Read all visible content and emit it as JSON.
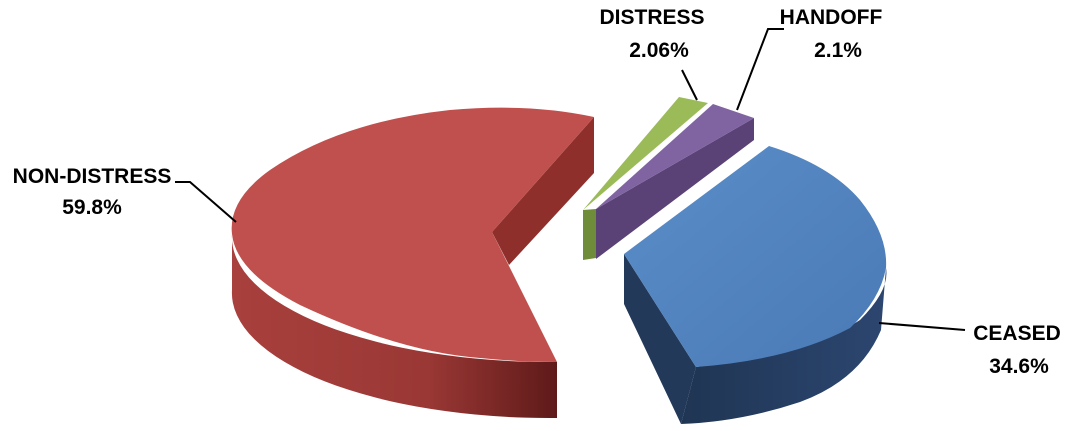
{
  "chart_data": {
    "type": "pie",
    "title": "",
    "exploded_3d": true,
    "slices": [
      {
        "name": "CEASED",
        "label": "CEASED",
        "pct_label": "34.6%",
        "value": 34.6,
        "color": "#4f81bd",
        "side_color": "#243a5e"
      },
      {
        "name": "NON-DISTRESS",
        "label": "NON-DISTRESS",
        "pct_label": "59.8%",
        "value": 59.8,
        "color": "#c0504d",
        "side_color": "#8c2a28"
      },
      {
        "name": "DISTRESS",
        "label": "DISTRESS",
        "pct_label": "2.06%",
        "value": 2.06,
        "color": "#9bbb59",
        "side_color": "#6e8a3a"
      },
      {
        "name": "HANDOFF",
        "label": "HANDOFF",
        "pct_label": "2.1%",
        "value": 2.1,
        "color": "#8064a2",
        "side_color": "#57406f"
      }
    ]
  }
}
